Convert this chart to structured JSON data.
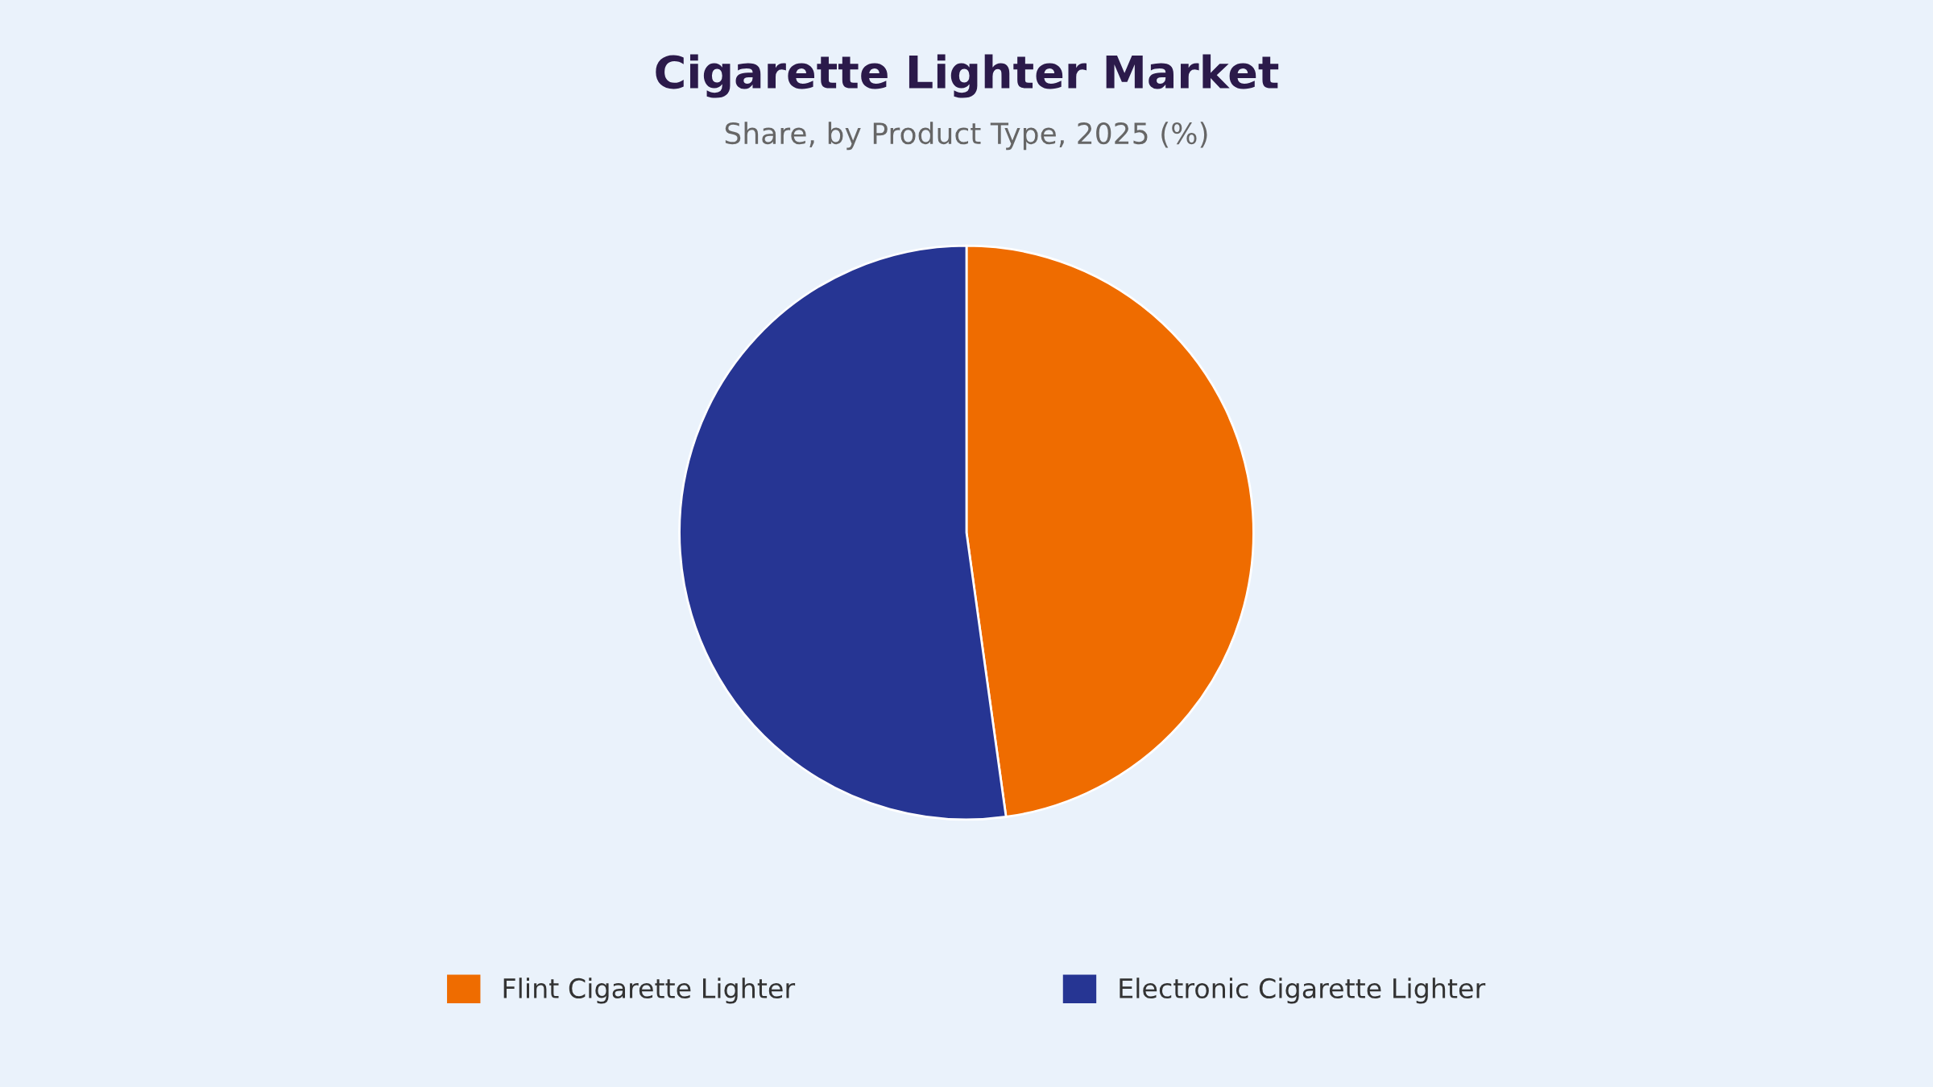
{
  "chart_data": {
    "type": "pie",
    "title": "Cigarette Lighter Market",
    "subtitle": "Share, by Product Type, 2025 (%)",
    "categories": [
      "Flint Cigarette Lighter",
      "Electronic Cigarette Lighter"
    ],
    "values": [
      47.8,
      52.2
    ],
    "colors": [
      "#ef6c00",
      "#263593"
    ],
    "legend": "bottom"
  }
}
